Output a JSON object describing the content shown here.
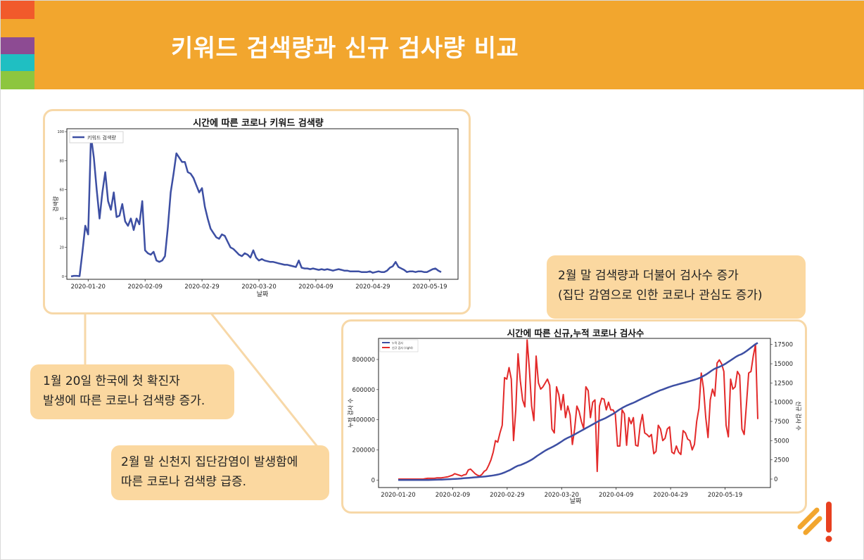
{
  "slide": {
    "title": "키워드 검색량과 신규 검사량 비교",
    "stripe_colors": [
      "#f15a2b",
      "#f2a62e",
      "#8d4b93",
      "#1fbfc2",
      "#8dc63f"
    ],
    "accent_color": "#f2a62e"
  },
  "callouts": {
    "jan20_line1": "1월 20일 한국에 첫 확진자",
    "jan20_line2": "발생에 따른 코로나 검색량 증가.",
    "feb_end_line1": "2월 말 신천지 집단감염이 발생함에",
    "feb_end_line2": "따른 코로나 검색량 급증.",
    "tests_line1": "2월 말 검색량과 더불어 검사수 증가",
    "tests_line2": "(집단 감염으로 인한 코로나 관심도 증가)"
  },
  "chart_data": [
    {
      "type": "line",
      "title": "시간에 따른 코로나 키워드 검색량",
      "xlabel": "날짜",
      "ylabel": "검색량",
      "x_start": "2020-01-14",
      "x_ticks": [
        "2020-01-20",
        "2020-02-09",
        "2020-02-29",
        "2020-03-20",
        "2020-04-09",
        "2020-04-29",
        "2020-05-19"
      ],
      "y_ticks": [
        "0",
        "20",
        "40",
        "60",
        "80",
        "100"
      ],
      "ylim": [
        -2,
        102
      ],
      "grid": false,
      "legend": "top-left",
      "series": [
        {
          "name": "키워드 검색량",
          "color": "#3d4fa3",
          "values": [
            0,
            0.4,
            0.4,
            0.2,
            17,
            35,
            29,
            97,
            82,
            60,
            40,
            58,
            72,
            52,
            46,
            58,
            41,
            42,
            50,
            38,
            35,
            40,
            32,
            40,
            36,
            52,
            18,
            16,
            15,
            17,
            11,
            10,
            11,
            14,
            34,
            58,
            71,
            85,
            82,
            79,
            79,
            72,
            71,
            68,
            63,
            58,
            61,
            48,
            40,
            33,
            30,
            27,
            26,
            29,
            28,
            24,
            20,
            19,
            17,
            15,
            14,
            16,
            15,
            13,
            18,
            13,
            11,
            12,
            11,
            10.5,
            10,
            10,
            9.5,
            9,
            8.5,
            8,
            8,
            7.5,
            7,
            6.5,
            11,
            6,
            5.5,
            5.5,
            5,
            5.5,
            5,
            4.5,
            5,
            4.5,
            5,
            4.5,
            4,
            4.5,
            5,
            4.5,
            4,
            4,
            3.5,
            3.5,
            3.5,
            3.5,
            3,
            3,
            3,
            3.5,
            2.5,
            3,
            3.5,
            3,
            3,
            4,
            6,
            7,
            10,
            6.5,
            5.5,
            4.5,
            3,
            3.5,
            3.5,
            3,
            3.5,
            3.5,
            3,
            3,
            4,
            5,
            5.5,
            4,
            3
          ]
        }
      ]
    },
    {
      "type": "line",
      "title": "시간에 따른 신규,누적 코로나 검사수",
      "xlabel": "날짜",
      "ylabel_left": "누적 검사 수",
      "ylabel_right": "신규 검사 수",
      "x_start": "2020-01-14",
      "x_ticks": [
        "2020-01-20",
        "2020-02-09",
        "2020-02-29",
        "2020-03-20",
        "2020-04-09",
        "2020-04-29",
        "2020-05-19"
      ],
      "y_ticks_left": [
        "0",
        "200000",
        "400000",
        "600000",
        "800000"
      ],
      "y_ticks_right": [
        "0",
        "2500",
        "5000",
        "7500",
        "10000",
        "12500",
        "15000",
        "17500"
      ],
      "ylim_left": [
        -50000,
        940000
      ],
      "ylim_right": [
        -1100,
        18300
      ],
      "grid": false,
      "legend": "top-left",
      "series": [
        {
          "name": "누적 검사",
          "axis": "left",
          "color": "#3d4fa3",
          "values": [
            0,
            0,
            0,
            0,
            0,
            0,
            0,
            0,
            0,
            0,
            0,
            500,
            1000,
            1500,
            2000,
            2500,
            3000,
            3500,
            4500,
            5500,
            6500,
            7500,
            8500,
            10000,
            11500,
            13000,
            14500,
            16000,
            17500,
            19000,
            20500,
            22000,
            24000,
            26000,
            28000,
            31000,
            34000,
            38000,
            43000,
            50000,
            58000,
            66000,
            76000,
            87000,
            95000,
            100000,
            108000,
            116000,
            125000,
            135000,
            147000,
            160000,
            172000,
            184000,
            195000,
            205000,
            214000,
            223000,
            233000,
            244000,
            256000,
            268000,
            278000,
            286000,
            295000,
            305000,
            315000,
            325000,
            335000,
            345000,
            355000,
            365000,
            375000,
            385000,
            395000,
            402000,
            410000,
            420000,
            430000,
            440000,
            452000,
            465000,
            476000,
            486000,
            495000,
            503000,
            510000,
            518000,
            527000,
            536000,
            545000,
            553000,
            561000,
            570000,
            578000,
            586000,
            594000,
            600000,
            607000,
            614000,
            620000,
            626000,
            631000,
            636000,
            641000,
            646000,
            651000,
            656000,
            661000,
            667000,
            673000,
            680000,
            690000,
            700000,
            712000,
            725000,
            737000,
            745000,
            752000,
            760000,
            770000,
            782000,
            794000,
            806000,
            818000,
            828000,
            835000,
            845000,
            858000,
            872000,
            886000,
            900000,
            910000
          ]
        },
        {
          "name": "신규 검사 (right)",
          "axis": "right",
          "color": "#e32a2a",
          "values": [
            0,
            0,
            0,
            0,
            0,
            0,
            0,
            0,
            0,
            0,
            0,
            0,
            50,
            100,
            100,
            100,
            100,
            150,
            150,
            150,
            200,
            250,
            300,
            400,
            500,
            700,
            600,
            500,
            400,
            550,
            600,
            1200,
            1300,
            1000,
            700,
            500,
            400,
            600,
            1000,
            1200,
            1800,
            2500,
            3500,
            5000,
            4800,
            6000,
            7000,
            13200,
            13000,
            14500,
            13000,
            5000,
            9000,
            16300,
            12800,
            10300,
            9400,
            18100,
            14300,
            9500,
            7600,
            16000,
            12500,
            11700,
            12000,
            12500,
            13000,
            12200,
            6500,
            6000,
            12000,
            11000,
            9000,
            11000,
            8000,
            9500,
            8300,
            4500,
            6500,
            9500,
            8800,
            7500,
            6600,
            12000,
            11500,
            8000,
            10000,
            10300,
            1000,
            9500,
            10500,
            10400,
            9000,
            10000,
            9000,
            9000,
            8500,
            4300,
            4300,
            9000,
            8500,
            4400,
            8000,
            7200,
            8000,
            4400,
            4300,
            7000,
            8400,
            6000,
            5800,
            5500,
            5800,
            3300,
            3600,
            7000,
            6500,
            5000,
            5300,
            6500,
            6800,
            3500,
            3300,
            4300,
            3500,
            3200,
            6300,
            6000,
            5200,
            5000,
            3800,
            4500,
            7500,
            9200,
            13800,
            11800,
            8000,
            5400,
            10300,
            11700,
            10800,
            15100,
            15500,
            15000,
            14000,
            7000,
            5500,
            13000,
            11700,
            12000,
            14000,
            13500,
            6500,
            5800,
            9700,
            13800,
            14000,
            16000,
            17500,
            7800
          ]
        }
      ]
    }
  ]
}
